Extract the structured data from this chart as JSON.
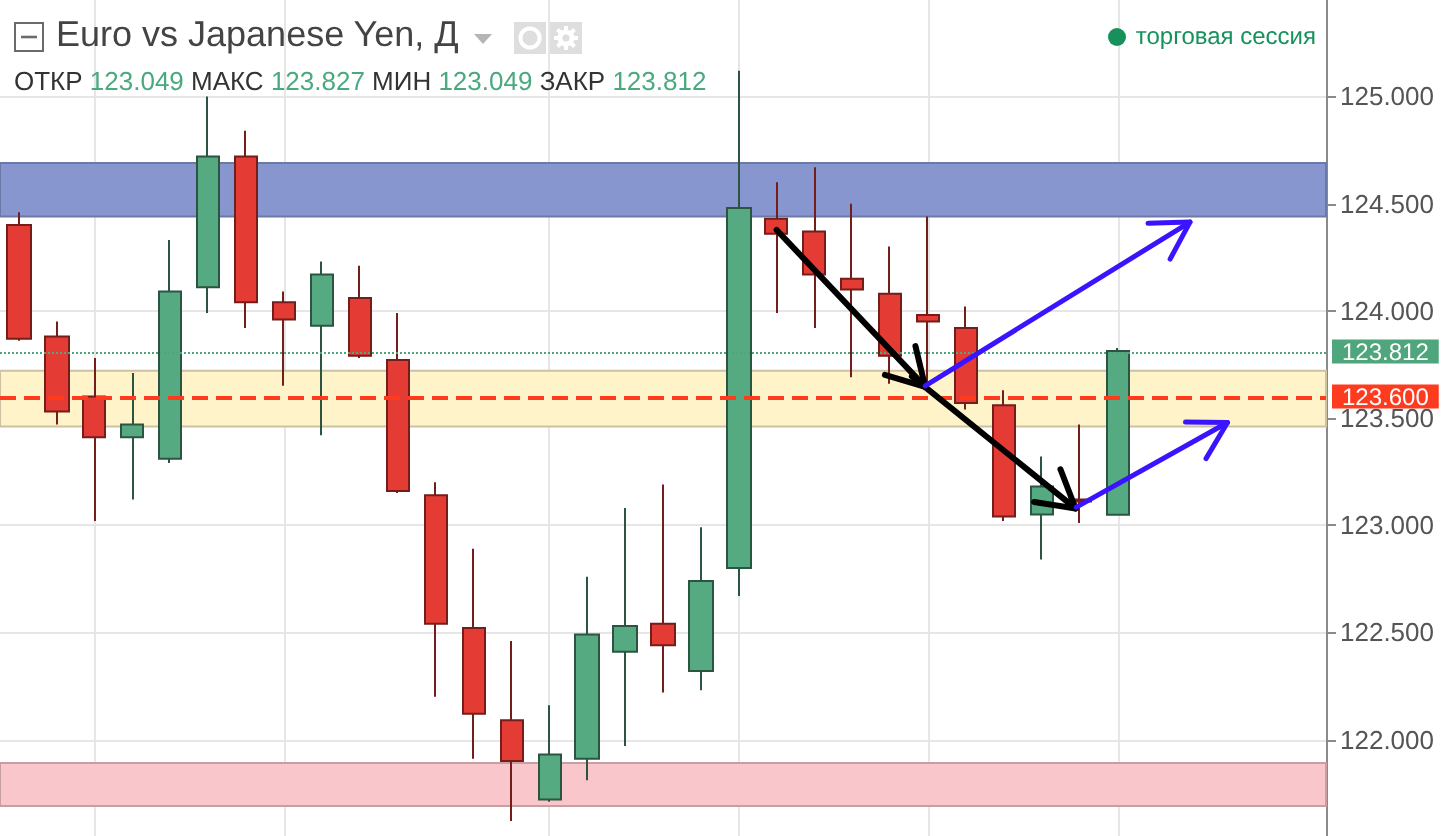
{
  "chart_data": {
    "type": "candlestick",
    "title": "Euro vs Japanese Yen, Д",
    "subtitle": "ОТКР 123.049 МАКС 123.827 МИН 123.049 ЗАКР 123.812",
    "annotations": [
      "торговая сессия"
    ],
    "categories": [
      null,
      null,
      null,
      null,
      null,
      null,
      null,
      null,
      null,
      null,
      null,
      null,
      null,
      null,
      null,
      null,
      null,
      null,
      null,
      null,
      null,
      null,
      null,
      null,
      null,
      null,
      null,
      null,
      null,
      null,
      null,
      null,
      null,
      null,
      null
    ],
    "ohlc": [
      [
        124.4,
        124.46,
        123.86,
        123.87
      ],
      [
        123.88,
        123.95,
        123.47,
        123.53
      ],
      [
        123.6,
        123.78,
        123.02,
        123.41
      ],
      [
        123.41,
        123.71,
        123.12,
        123.47
      ],
      [
        123.31,
        124.33,
        123.29,
        124.09
      ],
      [
        124.11,
        125.0,
        123.99,
        124.72
      ],
      [
        124.72,
        124.84,
        123.92,
        124.04
      ],
      [
        124.04,
        124.09,
        123.65,
        123.96
      ],
      [
        123.93,
        124.23,
        123.42,
        124.17
      ],
      [
        124.06,
        124.21,
        123.78,
        123.79
      ],
      [
        123.77,
        123.99,
        123.15,
        123.16
      ],
      [
        123.14,
        123.2,
        122.2,
        122.54
      ],
      [
        122.52,
        122.89,
        121.91,
        122.12
      ],
      [
        122.09,
        122.46,
        121.62,
        121.9
      ],
      [
        121.72,
        122.16,
        121.71,
        121.93
      ],
      [
        121.91,
        122.76,
        121.81,
        122.49
      ],
      [
        122.41,
        123.08,
        121.97,
        122.53
      ],
      [
        122.54,
        123.19,
        122.22,
        122.44
      ],
      [
        122.32,
        122.99,
        122.23,
        122.74
      ],
      [
        122.8,
        125.12,
        122.67,
        124.48
      ],
      [
        124.43,
        124.6,
        123.99,
        124.36
      ],
      [
        124.37,
        124.67,
        123.92,
        124.17
      ],
      [
        124.15,
        124.5,
        123.69,
        124.1
      ],
      [
        124.08,
        124.3,
        123.66,
        123.79
      ],
      [
        123.98,
        124.44,
        123.65,
        123.95
      ],
      [
        123.92,
        124.02,
        123.54,
        123.57
      ],
      [
        123.56,
        123.63,
        123.02,
        123.04
      ],
      [
        123.05,
        123.32,
        122.84,
        123.18
      ],
      [
        123.12,
        123.47,
        123.01,
        123.11
      ],
      [
        123.049,
        123.827,
        123.049,
        123.812
      ],
      null,
      null,
      null,
      null,
      null
    ],
    "colors": [
      "#e53b35",
      "#e53b35",
      "#e53b35",
      "#55aa82",
      "#55aa82",
      "#55aa82",
      "#e53b35",
      "#e53b35",
      "#55aa82",
      "#e53b35",
      "#e53b35",
      "#e53b35",
      "#e53b35",
      "#e53b35",
      "#55aa82",
      "#55aa82",
      "#55aa82",
      "#e53b35",
      "#55aa82",
      "#55aa82",
      "#e53b35",
      "#e53b35",
      "#e53b35",
      "#e53b35",
      "#e53b35",
      "#e53b35",
      "#e53b35",
      "#55aa82",
      "#e53b35",
      "#55aa82",
      null,
      null,
      null,
      null,
      null
    ],
    "ylim": [
      121.55,
      125.45
    ],
    "yticks": [
      {
        "value": 122,
        "label": "122.000"
      },
      {
        "value": 122.5,
        "label": "122.500"
      },
      {
        "value": 123,
        "label": "123.000"
      },
      {
        "value": 123.5,
        "label": "123.500"
      },
      {
        "value": 124,
        "label": "124.000"
      },
      {
        "value": 124.5,
        "label": "124.500"
      },
      {
        "value": 125,
        "label": "125.000"
      }
    ],
    "ref_lines": [
      {
        "axis": "y",
        "value": 123.812,
        "label": "123.812",
        "color": "#4fa57c",
        "line_style": "dotted"
      },
      {
        "axis": "y",
        "value": 123.6,
        "label": "123.600",
        "color": "#ff3b1f",
        "line_style": "dashed"
      }
    ],
    "bands": [
      {
        "axis": "y",
        "from": 124.44,
        "to": 124.69,
        "color": "#8796cf"
      },
      {
        "axis": "y",
        "from": 123.46,
        "to": 123.72,
        "color": "#fff3c9"
      },
      {
        "axis": "y",
        "from": 121.69,
        "to": 121.89,
        "color": "#f9c6cb"
      }
    ],
    "grid": true,
    "tick_labels": "y"
  }
}
